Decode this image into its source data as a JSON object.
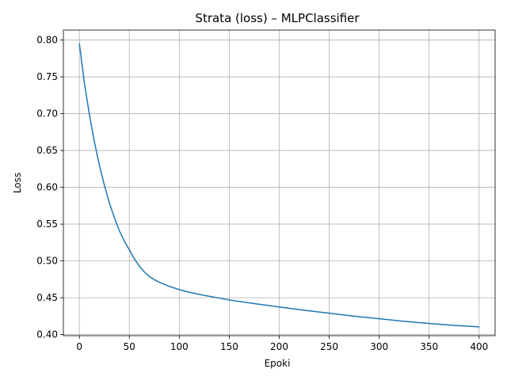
{
  "chart_data": {
    "type": "line",
    "title": "Strata (loss) – MLPClassifier",
    "xlabel": "Epoki",
    "ylabel": "Loss",
    "xlim": [
      -16,
      416
    ],
    "ylim": [
      0.3985,
      0.8135
    ],
    "xticks": [
      0,
      50,
      100,
      150,
      200,
      250,
      300,
      350,
      400
    ],
    "xtick_labels": [
      "0",
      "50",
      "100",
      "150",
      "200",
      "250",
      "300",
      "350",
      "400"
    ],
    "yticks": [
      0.4,
      0.45,
      0.5,
      0.55,
      0.6,
      0.65,
      0.7,
      0.75,
      0.8
    ],
    "ytick_labels": [
      "0.40",
      "0.45",
      "0.50",
      "0.55",
      "0.60",
      "0.65",
      "0.70",
      "0.75",
      "0.80"
    ],
    "grid": true,
    "line_color": "#1f77b4",
    "series": [
      {
        "x": [
          0,
          5,
          10,
          15,
          20,
          25,
          30,
          35,
          40,
          45,
          50,
          55,
          60,
          65,
          70,
          75,
          80,
          90,
          100,
          110,
          120,
          130,
          140,
          150,
          175,
          200,
          225,
          250,
          275,
          300,
          325,
          350,
          375,
          400
        ],
        "y": [
          0.795,
          0.742,
          0.699,
          0.662,
          0.63,
          0.603,
          0.579,
          0.559,
          0.541,
          0.527,
          0.515,
          0.503,
          0.493,
          0.485,
          0.479,
          0.4745,
          0.471,
          0.4655,
          0.461,
          0.4575,
          0.4545,
          0.452,
          0.4495,
          0.447,
          0.442,
          0.4375,
          0.433,
          0.429,
          0.425,
          0.4215,
          0.418,
          0.415,
          0.4125,
          0.4105
        ]
      }
    ]
  }
}
